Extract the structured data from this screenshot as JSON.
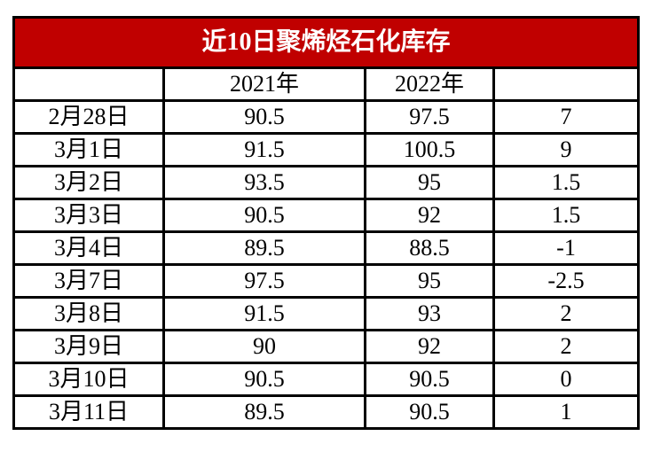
{
  "colors": {
    "title_bg": "#C00000",
    "title_text": "#FFFFFF",
    "border": "#000000",
    "cell_bg": "#FFFFFF",
    "cell_text": "#000000"
  },
  "chart_data": {
    "type": "table",
    "title": "近10日聚烯烃石化库存",
    "columns": [
      "",
      "2021年",
      "2022年",
      ""
    ],
    "rows": [
      [
        "2月28日",
        "90.5",
        "97.5",
        "7"
      ],
      [
        "3月1日",
        "91.5",
        "100.5",
        "9"
      ],
      [
        "3月2日",
        "93.5",
        "95",
        "1.5"
      ],
      [
        "3月3日",
        "90.5",
        "92",
        "1.5"
      ],
      [
        "3月4日",
        "89.5",
        "88.5",
        "-1"
      ],
      [
        "3月7日",
        "97.5",
        "95",
        "-2.5"
      ],
      [
        "3月8日",
        "91.5",
        "93",
        "2"
      ],
      [
        "3月9日",
        "90",
        "92",
        "2"
      ],
      [
        "3月10日",
        "90.5",
        "90.5",
        "0"
      ],
      [
        "3月11日",
        "89.5",
        "90.5",
        "1"
      ]
    ]
  }
}
